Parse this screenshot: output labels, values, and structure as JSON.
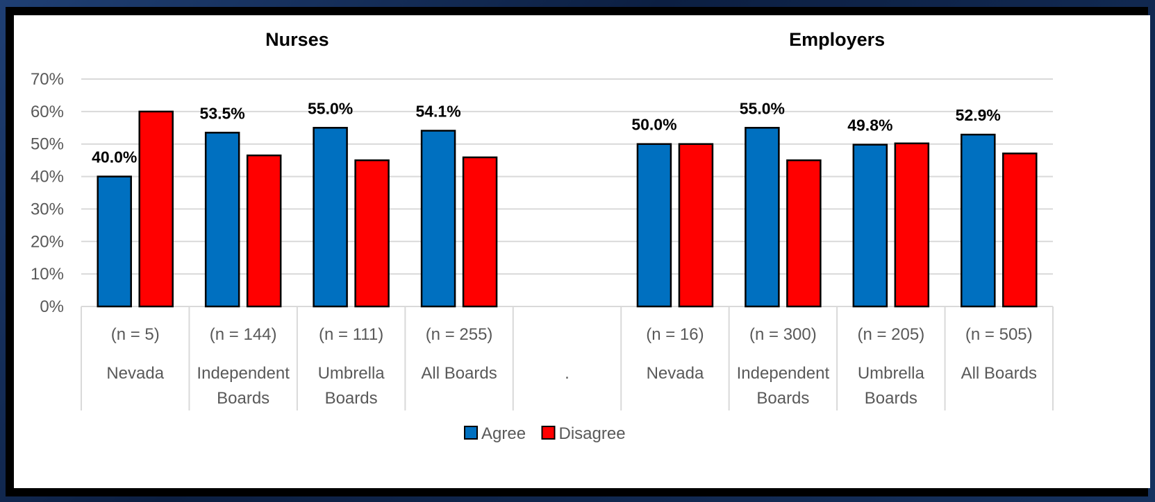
{
  "chart_data": {
    "type": "bar",
    "ylim": [
      0,
      70
    ],
    "yticks": [
      "0%",
      "10%",
      "20%",
      "30%",
      "40%",
      "50%",
      "60%",
      "70%"
    ],
    "grid": true,
    "legend_position": "bottom",
    "group_titles": [
      "Nurses",
      "Employers"
    ],
    "categories": [
      {
        "n": "(n = 5)",
        "label": [
          "Nevada"
        ],
        "group": "Nurses"
      },
      {
        "n": "(n = 144)",
        "label": [
          "Independent",
          "Boards"
        ],
        "group": "Nurses"
      },
      {
        "n": "(n = 111)",
        "label": [
          "Umbrella",
          "Boards"
        ],
        "group": "Nurses"
      },
      {
        "n": "(n = 255)",
        "label": [
          "All Boards"
        ],
        "group": "Nurses"
      },
      {
        "n": "",
        "label": [
          "."
        ],
        "group": ""
      },
      {
        "n": "(n = 16)",
        "label": [
          "Nevada"
        ],
        "group": "Employers"
      },
      {
        "n": "(n = 300)",
        "label": [
          "Independent",
          "Boards"
        ],
        "group": "Employers"
      },
      {
        "n": "(n = 205)",
        "label": [
          "Umbrella",
          "Boards"
        ],
        "group": "Employers"
      },
      {
        "n": "(n = 505)",
        "label": [
          "All Boards"
        ],
        "group": "Employers"
      }
    ],
    "series": [
      {
        "name": "Agree",
        "color": "#0070C0",
        "values": [
          40.0,
          53.5,
          55.0,
          54.1,
          null,
          50.0,
          55.0,
          49.8,
          52.9
        ]
      },
      {
        "name": "Disagree",
        "color": "#FF0000",
        "values": [
          60.0,
          46.5,
          45.0,
          45.9,
          null,
          50.0,
          45.0,
          50.2,
          47.1
        ]
      }
    ],
    "data_labels": [
      "40.0%",
      "53.5%",
      "55.0%",
      "54.1%",
      "",
      "50.0%",
      "55.0%",
      "49.8%",
      "52.9%"
    ]
  }
}
